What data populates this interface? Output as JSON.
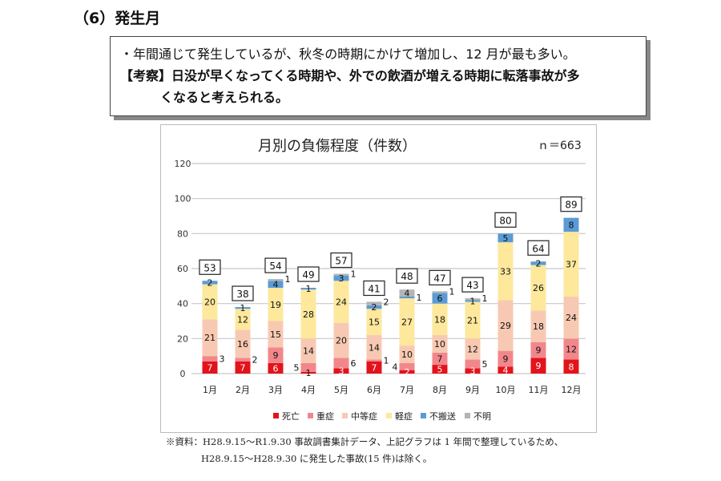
{
  "section_title": "（6）発生月",
  "notes": {
    "line1": "・年間通じて発生しているが、秋冬の時期にかけて増加し、12 月が最も多い。",
    "line2": "【考察】日没が早くなってくる時期や、外での飲酒が増える時期に転落事故が多",
    "line3": "くなると考えられる。"
  },
  "chart_data": {
    "type": "bar",
    "stacked": true,
    "title": "月別の負傷程度（件数）",
    "annotation": "ｎ＝663",
    "categories": [
      "1月",
      "2月",
      "3月",
      "4月",
      "5月",
      "6月",
      "7月",
      "8月",
      "9月",
      "10月",
      "11月",
      "12月"
    ],
    "ylim": [
      0,
      120
    ],
    "yticks": [
      0,
      20,
      40,
      60,
      80,
      100,
      120
    ],
    "grid": true,
    "legend_position": "bottom",
    "series": [
      {
        "name": "死亡",
        "color": "#e3131b",
        "values": [
          7,
          7,
          6,
          1,
          3,
          7,
          2,
          5,
          3,
          4,
          9,
          8
        ]
      },
      {
        "name": "重症",
        "color": "#f2878b",
        "values": [
          3,
          2,
          9,
          5,
          6,
          1,
          4,
          7,
          5,
          9,
          9,
          12
        ]
      },
      {
        "name": "中等症",
        "color": "#f8c9b2",
        "values": [
          21,
          16,
          15,
          14,
          20,
          14,
          10,
          10,
          12,
          29,
          18,
          24
        ]
      },
      {
        "name": "軽症",
        "color": "#fde89c",
        "values": [
          20,
          12,
          19,
          28,
          24,
          15,
          27,
          18,
          21,
          33,
          26,
          37
        ]
      },
      {
        "name": "不搬送",
        "color": "#5b9bd5",
        "values": [
          2,
          1,
          4,
          1,
          3,
          2,
          1,
          6,
          1,
          5,
          2,
          8
        ]
      },
      {
        "name": "不明",
        "color": "#b4b4b4",
        "values": [
          0,
          0,
          1,
          0,
          1,
          2,
          4,
          1,
          1,
          0,
          0,
          0
        ]
      }
    ],
    "totals": [
      53,
      38,
      54,
      49,
      57,
      41,
      48,
      47,
      43,
      80,
      64,
      89
    ]
  },
  "footnote": {
    "line1": "※資料：H28.9.15～R1.9.30 事故調書集計データ、上記グラフは 1 年間で整理しているため、",
    "line2": "H28.9.15～H28.9.30 に発生した事故(15 件)は除く。"
  }
}
